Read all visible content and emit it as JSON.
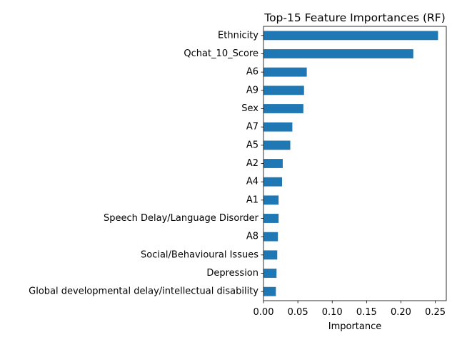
{
  "chart_data": {
    "type": "bar",
    "orientation": "horizontal",
    "title": "Top-15 Feature Importances (RF)",
    "xlabel": "Importance",
    "ylabel": "",
    "xlim": [
      0,
      0.266
    ],
    "xticks": [
      0.0,
      0.05,
      0.1,
      0.15,
      0.2,
      0.25
    ],
    "xtick_labels": [
      "0.00",
      "0.05",
      "0.10",
      "0.15",
      "0.20",
      "0.25"
    ],
    "grid": false,
    "bar_color": "#1f77b4",
    "categories": [
      "Ethnicity",
      "Qchat_10_Score",
      "A6",
      "A9",
      "Sex",
      "A7",
      "A5",
      "A2",
      "A4",
      "A1",
      "Speech Delay/Language Disorder",
      "A8",
      "Social/Behavioural Issues",
      "Depression",
      "Global developmental delay/intellectual disability"
    ],
    "values": [
      0.254,
      0.218,
      0.063,
      0.059,
      0.058,
      0.042,
      0.039,
      0.028,
      0.027,
      0.022,
      0.022,
      0.021,
      0.02,
      0.019,
      0.018
    ]
  }
}
